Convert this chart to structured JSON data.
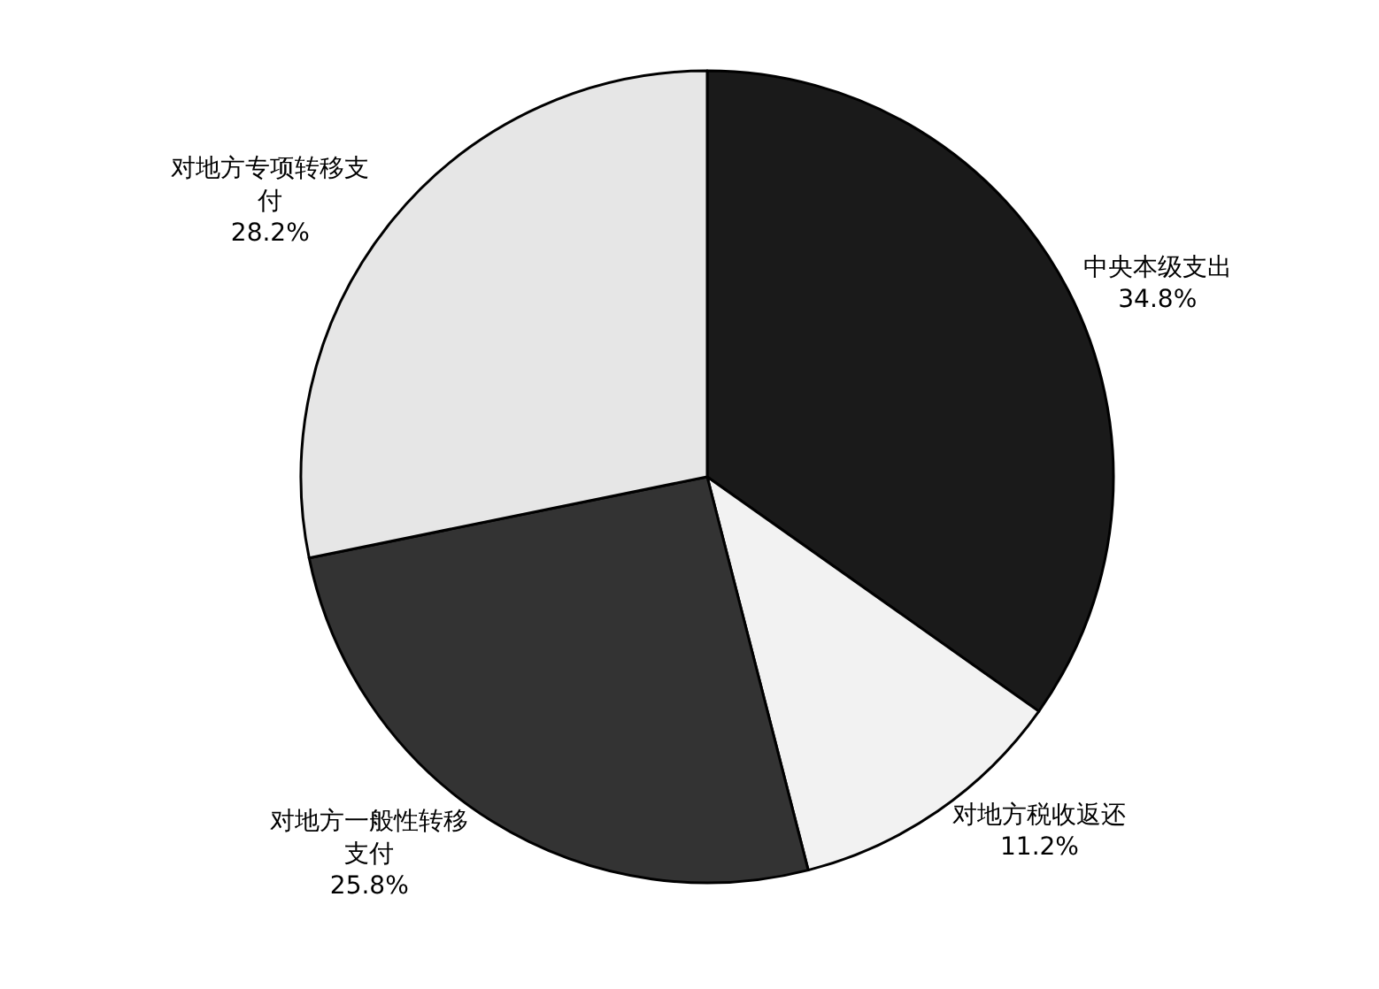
{
  "chart_data": {
    "type": "pie",
    "categories": [
      "中央本级支出",
      "对地方税收返还",
      "对地方一般性转移支付",
      "对地方专项转移支付"
    ],
    "values": [
      34.8,
      11.2,
      25.8,
      28.2
    ],
    "value_labels": [
      "34.8%",
      "11.2%",
      "25.8%",
      "28.2%"
    ],
    "colors": [
      "#1a1a1a",
      "#f2f2f2",
      "#333333",
      "#e6e6e6"
    ],
    "legend": false
  }
}
